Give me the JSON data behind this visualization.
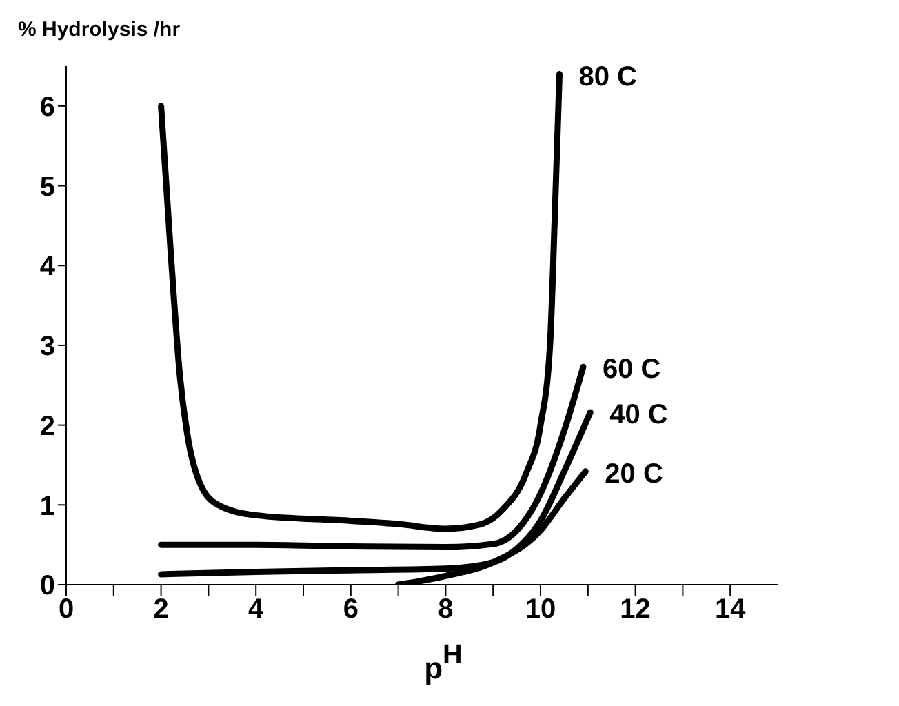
{
  "chart_data": {
    "type": "line",
    "ylabel": "% Hydrolysis /hr",
    "xlabel": "p$^{H}$",
    "xlim": [
      0,
      15
    ],
    "ylim": [
      0,
      6.5
    ],
    "xticks": [
      0,
      {
        "value": 1,
        "label": null
      },
      2,
      {
        "value": 3,
        "label": null
      },
      4,
      {
        "value": 5,
        "label": null
      },
      6,
      {
        "value": 7,
        "label": null
      },
      8,
      {
        "value": 9,
        "label": null
      },
      10,
      {
        "value": 11,
        "label": null
      },
      12,
      {
        "value": 13,
        "label": null
      },
      14
    ],
    "yticks": [
      0,
      1,
      2,
      3,
      4,
      5,
      6
    ],
    "marker": "none",
    "line_style": "solid",
    "series": [
      {
        "name": "80 C",
        "color": "#000000",
        "x": [
          2,
          2.2,
          2.4,
          2.55,
          2.8,
          3.2,
          4,
          6,
          7,
          8,
          8.7,
          9.2,
          9.7,
          10,
          10.2,
          10.3,
          10.4
        ],
        "values": [
          6.0,
          4.2,
          2.6,
          1.9,
          1.3,
          1.0,
          0.87,
          0.8,
          0.76,
          0.7,
          0.75,
          0.94,
          1.4,
          2.0,
          3.0,
          4.6,
          6.4
        ]
      },
      {
        "name": "60 C",
        "color": "#000000",
        "x": [
          2,
          4,
          6,
          8,
          9,
          9.5,
          10,
          10.5,
          10.9
        ],
        "values": [
          0.5,
          0.5,
          0.48,
          0.47,
          0.51,
          0.68,
          1.14,
          1.93,
          2.73
        ]
      },
      {
        "name": "40 C",
        "color": "#000000",
        "x": [
          2,
          4,
          6,
          8,
          9,
          9.5,
          10,
          10.5,
          11.05
        ],
        "values": [
          0.13,
          0.16,
          0.18,
          0.2,
          0.28,
          0.45,
          0.8,
          1.42,
          2.16
        ]
      },
      {
        "name": "20 C",
        "color": "#000000",
        "x": [
          7,
          8,
          9,
          10,
          10.5,
          10.95
        ],
        "values": [
          0,
          0.11,
          0.28,
          0.68,
          1.08,
          1.42
        ]
      }
    ]
  }
}
